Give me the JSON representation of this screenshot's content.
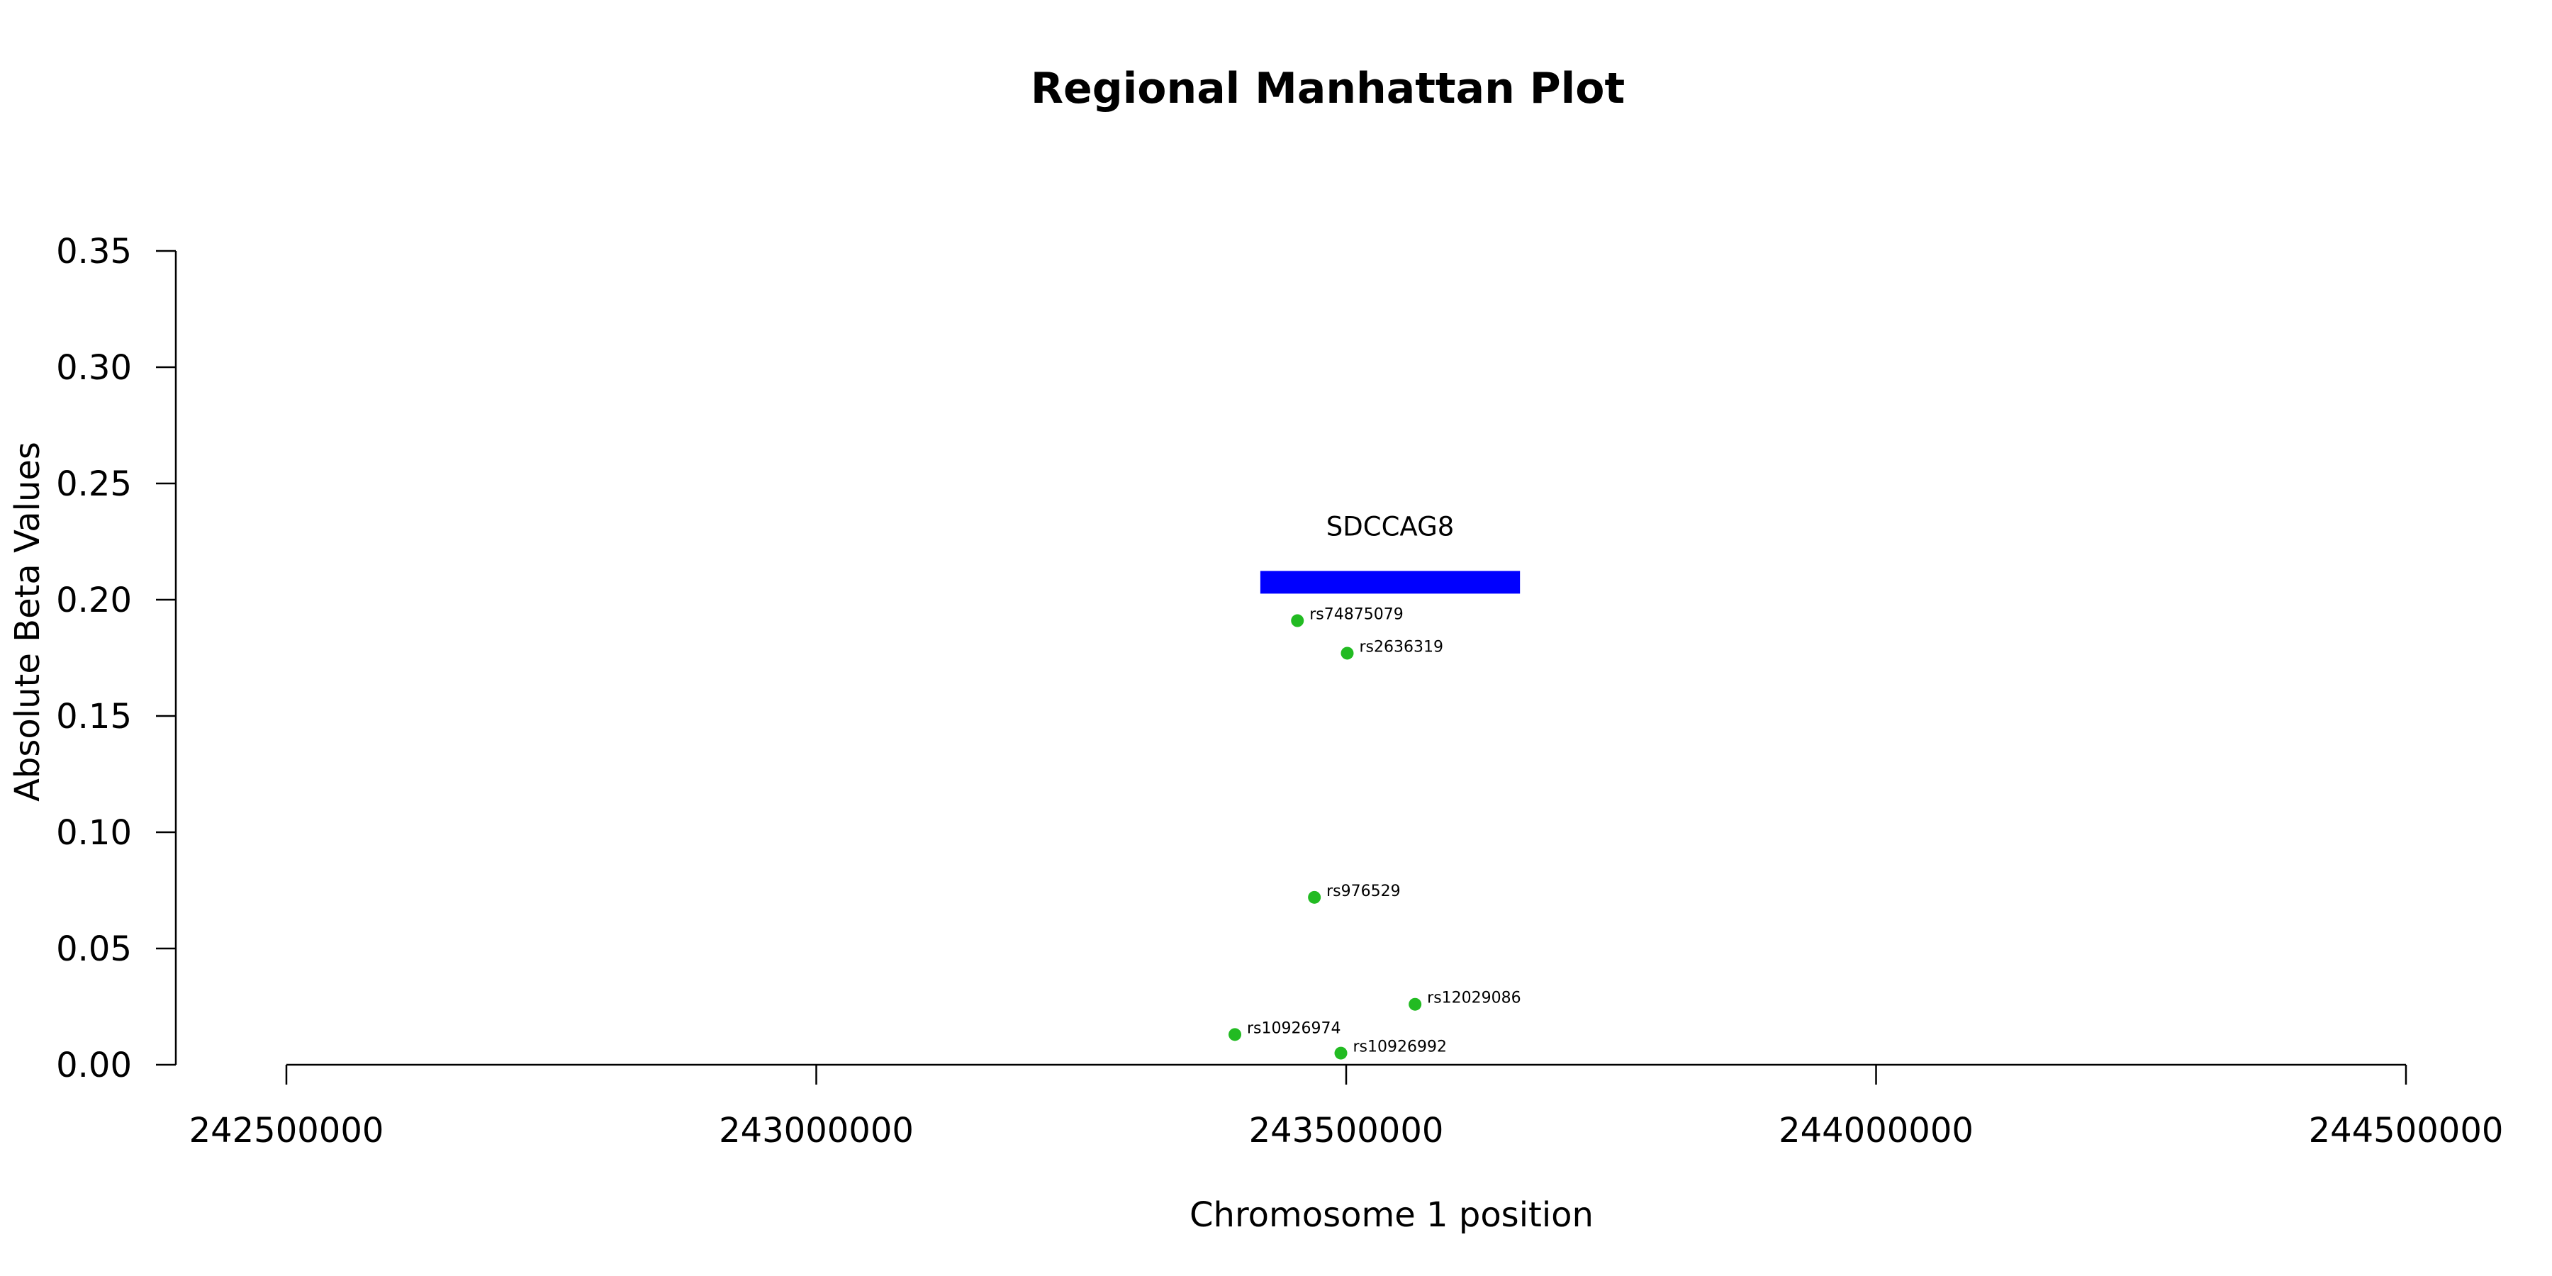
{
  "chart_data": {
    "type": "scatter",
    "title": "Regional Manhattan Plot",
    "xlabel": "Chromosome 1 position",
    "ylabel": "Absolute Beta Values",
    "xlim": [
      242500000,
      244500000
    ],
    "ylim": [
      0,
      0.35
    ],
    "x_ticks": [
      "242500000",
      "243000000",
      "243500000",
      "244000000",
      "244500000"
    ],
    "y_ticks": [
      "0.00",
      "0.05",
      "0.10",
      "0.15",
      "0.20",
      "0.25",
      "0.30",
      "0.35"
    ],
    "grid": false,
    "point_color": "#22bb22",
    "gene_color": "#0000ff",
    "genes": [
      {
        "name": "SDCCAG8",
        "start": 243419000,
        "end": 243664000,
        "y": 0.2075
      }
    ],
    "points": [
      {
        "label": "rs74875079",
        "x": 243454000,
        "y": 0.191
      },
      {
        "label": "rs2636319",
        "x": 243501000,
        "y": 0.177
      },
      {
        "label": "rs976529",
        "x": 243470000,
        "y": 0.072
      },
      {
        "label": "rs12029086",
        "x": 243565000,
        "y": 0.026
      },
      {
        "label": "rs10926974",
        "x": 243395000,
        "y": 0.013
      },
      {
        "label": "rs10926992",
        "x": 243495000,
        "y": 0.005
      }
    ]
  }
}
